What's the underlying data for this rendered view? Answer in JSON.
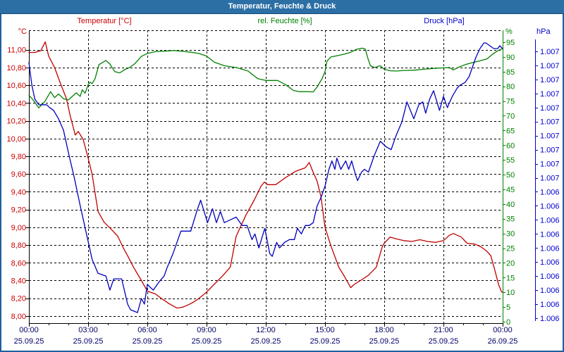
{
  "window": {
    "title": "Temperatur, Feuchte & Druck"
  },
  "legend": {
    "temperature": "Temperatur [°C]",
    "humidity": "rel. Feuchte [%]",
    "pressure": "Druck [hPa]"
  },
  "units": {
    "left": "°C",
    "percent": "%",
    "pressure": "hPa"
  },
  "colors": {
    "frame": "#1E5F9E",
    "titlebar": "#2C6FA5",
    "temperature": "#C00000",
    "temperature_labels": "#CC0000",
    "humidity": "#008000",
    "pressure": "#0000BB",
    "pressure_labels": "#0000CC",
    "x_labels": "#000066",
    "grid": "#000000"
  },
  "chart_data": {
    "type": "line",
    "title": "Temperatur, Feuchte & Druck",
    "grid": "dashed, horizontal every 0.2 °C, vertical every 3 h",
    "x_axis": {
      "tick_times": [
        "00:00",
        "03:00",
        "06:00",
        "09:00",
        "12:00",
        "15:00",
        "18:00",
        "21:00",
        "00:00"
      ],
      "tick_dates": [
        "25.09.25",
        "25.09.25",
        "25.09.25",
        "25.09.25",
        "25.09.25",
        "25.09.25",
        "25.09.25",
        "25.09.25",
        "26.09.25"
      ],
      "major_tick_hours": 3,
      "minor_tick_hours": 1,
      "range_hours": [
        0,
        24
      ]
    },
    "y_left": {
      "unit": "°C",
      "tick_values": [
        11.0,
        10.8,
        10.6,
        10.4,
        10.2,
        10.0,
        9.8,
        9.6,
        9.4,
        9.2,
        9.0,
        8.8,
        8.6,
        8.4,
        8.2,
        8.0
      ],
      "tick_labels": [
        "11,00",
        "10,80",
        "10,60",
        "10,40",
        "10,20",
        "10,00",
        "9,80",
        "9,60",
        "9,40",
        "9,20",
        "9,00",
        "8,80",
        "8,60",
        "8,40",
        "8,20",
        "8,00"
      ],
      "range": [
        7.92,
        11.22
      ]
    },
    "y_percent": {
      "unit": "%",
      "tick_values": [
        95,
        90,
        85,
        80,
        75,
        70,
        65,
        60,
        55,
        50,
        45,
        40,
        35,
        30,
        25,
        20,
        15,
        10,
        5,
        0
      ],
      "range": [
        0,
        99
      ]
    },
    "y_pressure": {
      "unit": "hPa",
      "tick_labels": [
        "1.007",
        "1.007",
        "1.007",
        "1.007",
        "1.007",
        "1.007",
        "1.007",
        "1.007",
        "1.007",
        "1.007",
        "1.006",
        "1.006",
        "1.006",
        "1.006",
        "1.006",
        "1.006",
        "1.006",
        "1.006",
        "1.006",
        "1.006"
      ],
      "tick_values_hpa": [
        1007.45,
        1007.4,
        1007.35,
        1007.3,
        1007.25,
        1007.2,
        1007.15,
        1007.1,
        1007.05,
        1007.0,
        1006.95,
        1006.9,
        1006.85,
        1006.8,
        1006.75,
        1006.7,
        1006.65,
        1006.6,
        1006.55,
        1006.5
      ],
      "range": [
        1006.48,
        1007.53
      ]
    },
    "series": [
      {
        "name": "Temperatur",
        "unit": "°C",
        "axis": "left",
        "color": "#C00000",
        "points": [
          [
            0,
            10.97
          ],
          [
            0.3,
            10.97
          ],
          [
            0.6,
            10.99
          ],
          [
            0.83,
            11.09
          ],
          [
            1.0,
            10.93
          ],
          [
            1.3,
            10.8
          ],
          [
            1.6,
            10.62
          ],
          [
            1.9,
            10.45
          ],
          [
            2.1,
            10.25
          ],
          [
            2.35,
            10.04
          ],
          [
            2.5,
            10.08
          ],
          [
            2.75,
            9.99
          ],
          [
            3.0,
            9.78
          ],
          [
            3.2,
            9.6
          ],
          [
            3.5,
            9.18
          ],
          [
            3.8,
            9.06
          ],
          [
            4.2,
            8.97
          ],
          [
            4.5,
            8.9
          ],
          [
            4.8,
            8.76
          ],
          [
            5.0,
            8.68
          ],
          [
            5.3,
            8.55
          ],
          [
            5.7,
            8.4
          ],
          [
            6.0,
            8.28
          ],
          [
            6.4,
            8.25
          ],
          [
            6.7,
            8.2
          ],
          [
            7.1,
            8.14
          ],
          [
            7.5,
            8.09
          ],
          [
            7.8,
            8.1
          ],
          [
            8.2,
            8.14
          ],
          [
            8.5,
            8.18
          ],
          [
            8.9,
            8.25
          ],
          [
            9.0,
            8.27
          ],
          [
            9.4,
            8.36
          ],
          [
            9.8,
            8.45
          ],
          [
            10.2,
            8.55
          ],
          [
            10.5,
            8.9
          ],
          [
            11.0,
            9.14
          ],
          [
            11.4,
            9.3
          ],
          [
            11.75,
            9.46
          ],
          [
            11.93,
            9.51
          ],
          [
            12.1,
            9.48
          ],
          [
            12.5,
            9.48
          ],
          [
            13.0,
            9.56
          ],
          [
            13.5,
            9.63
          ],
          [
            14.0,
            9.67
          ],
          [
            14.2,
            9.73
          ],
          [
            14.4,
            9.62
          ],
          [
            14.6,
            9.52
          ],
          [
            14.8,
            9.34
          ],
          [
            15.0,
            9.0
          ],
          [
            15.3,
            8.79
          ],
          [
            15.7,
            8.55
          ],
          [
            16.0,
            8.44
          ],
          [
            16.3,
            8.32
          ],
          [
            16.5,
            8.36
          ],
          [
            16.8,
            8.4
          ],
          [
            17.2,
            8.46
          ],
          [
            17.6,
            8.55
          ],
          [
            17.9,
            8.78
          ],
          [
            18.0,
            8.82
          ],
          [
            18.3,
            8.89
          ],
          [
            18.6,
            8.87
          ],
          [
            19.0,
            8.85
          ],
          [
            19.4,
            8.84
          ],
          [
            19.8,
            8.86
          ],
          [
            20.2,
            8.84
          ],
          [
            20.6,
            8.83
          ],
          [
            21.0,
            8.85
          ],
          [
            21.3,
            8.91
          ],
          [
            21.5,
            8.93
          ],
          [
            21.9,
            8.89
          ],
          [
            22.2,
            8.82
          ],
          [
            22.6,
            8.81
          ],
          [
            22.9,
            8.78
          ],
          [
            23.2,
            8.73
          ],
          [
            23.4,
            8.68
          ],
          [
            23.6,
            8.52
          ],
          [
            23.8,
            8.35
          ],
          [
            23.95,
            8.27
          ],
          [
            24,
            8.27
          ]
        ]
      },
      {
        "name": "rel. Feuchte",
        "unit": "%",
        "axis": "percent",
        "color": "#008000",
        "points": [
          [
            0,
            77.0
          ],
          [
            0.2,
            75.5
          ],
          [
            0.5,
            72.7
          ],
          [
            0.8,
            74.8
          ],
          [
            1.1,
            78.2
          ],
          [
            1.3,
            76.2
          ],
          [
            1.5,
            77.4
          ],
          [
            1.75,
            75.8
          ],
          [
            2.0,
            75.4
          ],
          [
            2.4,
            77.8
          ],
          [
            2.6,
            76.6
          ],
          [
            2.7,
            78.8
          ],
          [
            2.85,
            77.7
          ],
          [
            3.0,
            80.6
          ],
          [
            3.1,
            81.4
          ],
          [
            3.2,
            80.9
          ],
          [
            3.35,
            82.6
          ],
          [
            3.55,
            87.4
          ],
          [
            3.9,
            88.8
          ],
          [
            4.1,
            87.6
          ],
          [
            4.35,
            85.0
          ],
          [
            4.6,
            84.6
          ],
          [
            4.85,
            85.7
          ],
          [
            5.1,
            86.4
          ],
          [
            5.35,
            87.6
          ],
          [
            5.7,
            90.2
          ],
          [
            6.0,
            91.2
          ],
          [
            6.4,
            91.8
          ],
          [
            7.0,
            92.0
          ],
          [
            7.3,
            92.2
          ],
          [
            7.8,
            91.9
          ],
          [
            8.2,
            91.6
          ],
          [
            8.6,
            91.2
          ],
          [
            9.0,
            90.3
          ],
          [
            9.4,
            88.2
          ],
          [
            9.9,
            87.0
          ],
          [
            10.5,
            86.4
          ],
          [
            11.1,
            85.2
          ],
          [
            11.6,
            82.6
          ],
          [
            12.0,
            82.0
          ],
          [
            12.6,
            82.0
          ],
          [
            13.0,
            80.6
          ],
          [
            13.4,
            78.6
          ],
          [
            13.7,
            78.2
          ],
          [
            14.1,
            78.2
          ],
          [
            14.4,
            78.1
          ],
          [
            14.6,
            79.8
          ],
          [
            14.85,
            82.6
          ],
          [
            15.0,
            85.0
          ],
          [
            15.1,
            88.6
          ],
          [
            15.3,
            90.0
          ],
          [
            15.6,
            90.4
          ],
          [
            16.0,
            91.0
          ],
          [
            16.3,
            91.6
          ],
          [
            16.6,
            92.6
          ],
          [
            16.9,
            93.0
          ],
          [
            17.05,
            92.6
          ],
          [
            17.15,
            90.0
          ],
          [
            17.3,
            87.0
          ],
          [
            17.5,
            86.4
          ],
          [
            17.8,
            87.0
          ],
          [
            18.0,
            85.8
          ],
          [
            18.3,
            85.3
          ],
          [
            18.6,
            85.2
          ],
          [
            19.0,
            85.4
          ],
          [
            19.5,
            85.5
          ],
          [
            20.0,
            85.8
          ],
          [
            20.5,
            86.1
          ],
          [
            21.0,
            86.3
          ],
          [
            21.3,
            86.4
          ],
          [
            21.5,
            85.6
          ],
          [
            21.8,
            86.6
          ],
          [
            22.1,
            87.4
          ],
          [
            22.5,
            88.1
          ],
          [
            22.8,
            88.6
          ],
          [
            23.2,
            89.3
          ],
          [
            23.5,
            91.0
          ],
          [
            23.8,
            92.3
          ],
          [
            24,
            92.8
          ]
        ]
      },
      {
        "name": "Druck",
        "unit": "hPa",
        "axis": "pressure",
        "color": "#0000BB",
        "points": [
          [
            0,
            1007.41
          ],
          [
            0.15,
            1007.33
          ],
          [
            0.3,
            1007.28
          ],
          [
            0.5,
            1007.26
          ],
          [
            0.9,
            1007.26
          ],
          [
            1.05,
            1007.25
          ],
          [
            1.25,
            1007.24
          ],
          [
            1.5,
            1007.21
          ],
          [
            1.75,
            1007.17
          ],
          [
            2.0,
            1007.09
          ],
          [
            2.3,
            1007.0
          ],
          [
            2.6,
            1006.9
          ],
          [
            2.82,
            1006.83
          ],
          [
            3.2,
            1006.71
          ],
          [
            3.5,
            1006.66
          ],
          [
            3.9,
            1006.65
          ],
          [
            4.1,
            1006.6
          ],
          [
            4.3,
            1006.64
          ],
          [
            4.7,
            1006.64
          ],
          [
            5.0,
            1006.55
          ],
          [
            5.15,
            1006.53
          ],
          [
            5.5,
            1006.52
          ],
          [
            5.7,
            1006.57
          ],
          [
            5.85,
            1006.55
          ],
          [
            6.0,
            1006.62
          ],
          [
            6.3,
            1006.6
          ],
          [
            6.6,
            1006.63
          ],
          [
            6.85,
            1006.65
          ],
          [
            7.0,
            1006.68
          ],
          [
            7.3,
            1006.73
          ],
          [
            7.5,
            1006.77
          ],
          [
            7.7,
            1006.81
          ],
          [
            8.2,
            1006.81
          ],
          [
            8.5,
            1006.88
          ],
          [
            8.7,
            1006.92
          ],
          [
            9.05,
            1006.84
          ],
          [
            9.3,
            1006.89
          ],
          [
            9.5,
            1006.84
          ],
          [
            9.7,
            1006.88
          ],
          [
            9.9,
            1006.84
          ],
          [
            10.2,
            1006.85
          ],
          [
            10.5,
            1006.86
          ],
          [
            10.8,
            1006.83
          ],
          [
            11.05,
            1006.83
          ],
          [
            11.3,
            1006.78
          ],
          [
            11.45,
            1006.8
          ],
          [
            11.65,
            1006.75
          ],
          [
            11.95,
            1006.82
          ],
          [
            12.2,
            1006.73
          ],
          [
            12.33,
            1006.72
          ],
          [
            12.55,
            1006.77
          ],
          [
            12.7,
            1006.75
          ],
          [
            12.95,
            1006.77
          ],
          [
            13.2,
            1006.78
          ],
          [
            13.45,
            1006.78
          ],
          [
            13.6,
            1006.82
          ],
          [
            13.8,
            1006.8
          ],
          [
            14.0,
            1006.83
          ],
          [
            14.2,
            1006.83
          ],
          [
            14.4,
            1006.84
          ],
          [
            14.6,
            1006.9
          ],
          [
            14.8,
            1006.93
          ],
          [
            15.0,
            1006.97
          ],
          [
            15.2,
            1007.03
          ],
          [
            15.35,
            1007.06
          ],
          [
            15.5,
            1007.03
          ],
          [
            15.6,
            1007.07
          ],
          [
            15.8,
            1007.03
          ],
          [
            16.05,
            1007.06
          ],
          [
            16.2,
            1007.03
          ],
          [
            16.35,
            1007.06
          ],
          [
            16.55,
            1007.01
          ],
          [
            16.65,
            1006.99
          ],
          [
            16.85,
            1007.02
          ],
          [
            17.0,
            1007.03
          ],
          [
            17.2,
            1007.02
          ],
          [
            17.5,
            1007.08
          ],
          [
            17.8,
            1007.13
          ],
          [
            18.1,
            1007.11
          ],
          [
            18.35,
            1007.1
          ],
          [
            18.6,
            1007.15
          ],
          [
            18.9,
            1007.2
          ],
          [
            19.15,
            1007.27
          ],
          [
            19.5,
            1007.21
          ],
          [
            19.75,
            1007.26
          ],
          [
            19.95,
            1007.27
          ],
          [
            20.1,
            1007.23
          ],
          [
            20.3,
            1007.28
          ],
          [
            20.5,
            1007.31
          ],
          [
            20.8,
            1007.24
          ],
          [
            21.0,
            1007.29
          ],
          [
            21.2,
            1007.25
          ],
          [
            21.45,
            1007.29
          ],
          [
            21.7,
            1007.32
          ],
          [
            21.85,
            1007.33
          ],
          [
            22.1,
            1007.34
          ],
          [
            22.3,
            1007.36
          ],
          [
            22.45,
            1007.39
          ],
          [
            22.65,
            1007.43
          ],
          [
            22.85,
            1007.46
          ],
          [
            23.05,
            1007.48
          ],
          [
            23.15,
            1007.48
          ],
          [
            23.35,
            1007.47
          ],
          [
            23.55,
            1007.46
          ],
          [
            23.75,
            1007.46
          ],
          [
            23.85,
            1007.47
          ],
          [
            24,
            1007.46
          ]
        ]
      }
    ]
  }
}
